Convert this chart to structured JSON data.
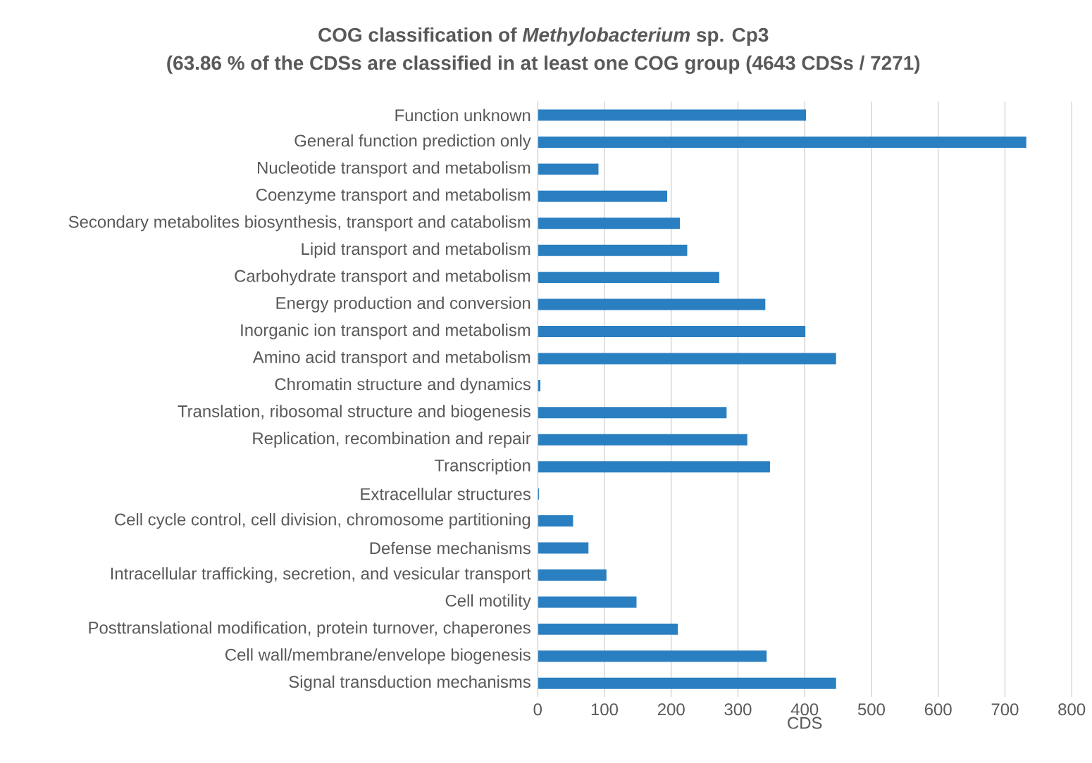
{
  "chart_data": {
    "type": "bar",
    "orientation": "horizontal",
    "title": "COG classification of *Methylobacterium* sp. Cp3",
    "subtitle": "(63.86 % of the CDSs are classified in at least one COG group (4643 CDSs / 7271)",
    "xlabel": "CDS",
    "categories": [
      "Function unknown",
      "General function prediction only",
      "Nucleotide transport and metabolism",
      "Coenzyme transport and metabolism",
      "Secondary metabolites biosynthesis, transport and catabolism",
      "Lipid transport and metabolism",
      "Carbohydrate transport and metabolism",
      "Energy production and conversion",
      "Inorganic ion transport and metabolism",
      "Amino acid transport and metabolism",
      "Chromatin structure and dynamics",
      "Translation, ribosomal structure and biogenesis",
      "Replication, recombination and repair",
      "Transcription",
      "Extracellular structures",
      "Cell cycle control, cell division, chromosome partitioning",
      "Defense mechanisms",
      "Intracellular trafficking, secretion, and vesicular transport",
      "Cell motility",
      "Posttranslational modification, protein turnover, chaperones",
      "Cell wall/membrane/envelope biogenesis",
      "Signal transduction mechanisms"
    ],
    "values": [
      402,
      732,
      91,
      194,
      213,
      224,
      272,
      341,
      401,
      447,
      4,
      283,
      314,
      348,
      2,
      53,
      76,
      103,
      148,
      210,
      343,
      447
    ],
    "color": "#2a7fc1",
    "xlim": [
      0,
      800
    ],
    "xticks": [
      0,
      100,
      200,
      300,
      400,
      500,
      600,
      700,
      800
    ],
    "grid": "x"
  }
}
